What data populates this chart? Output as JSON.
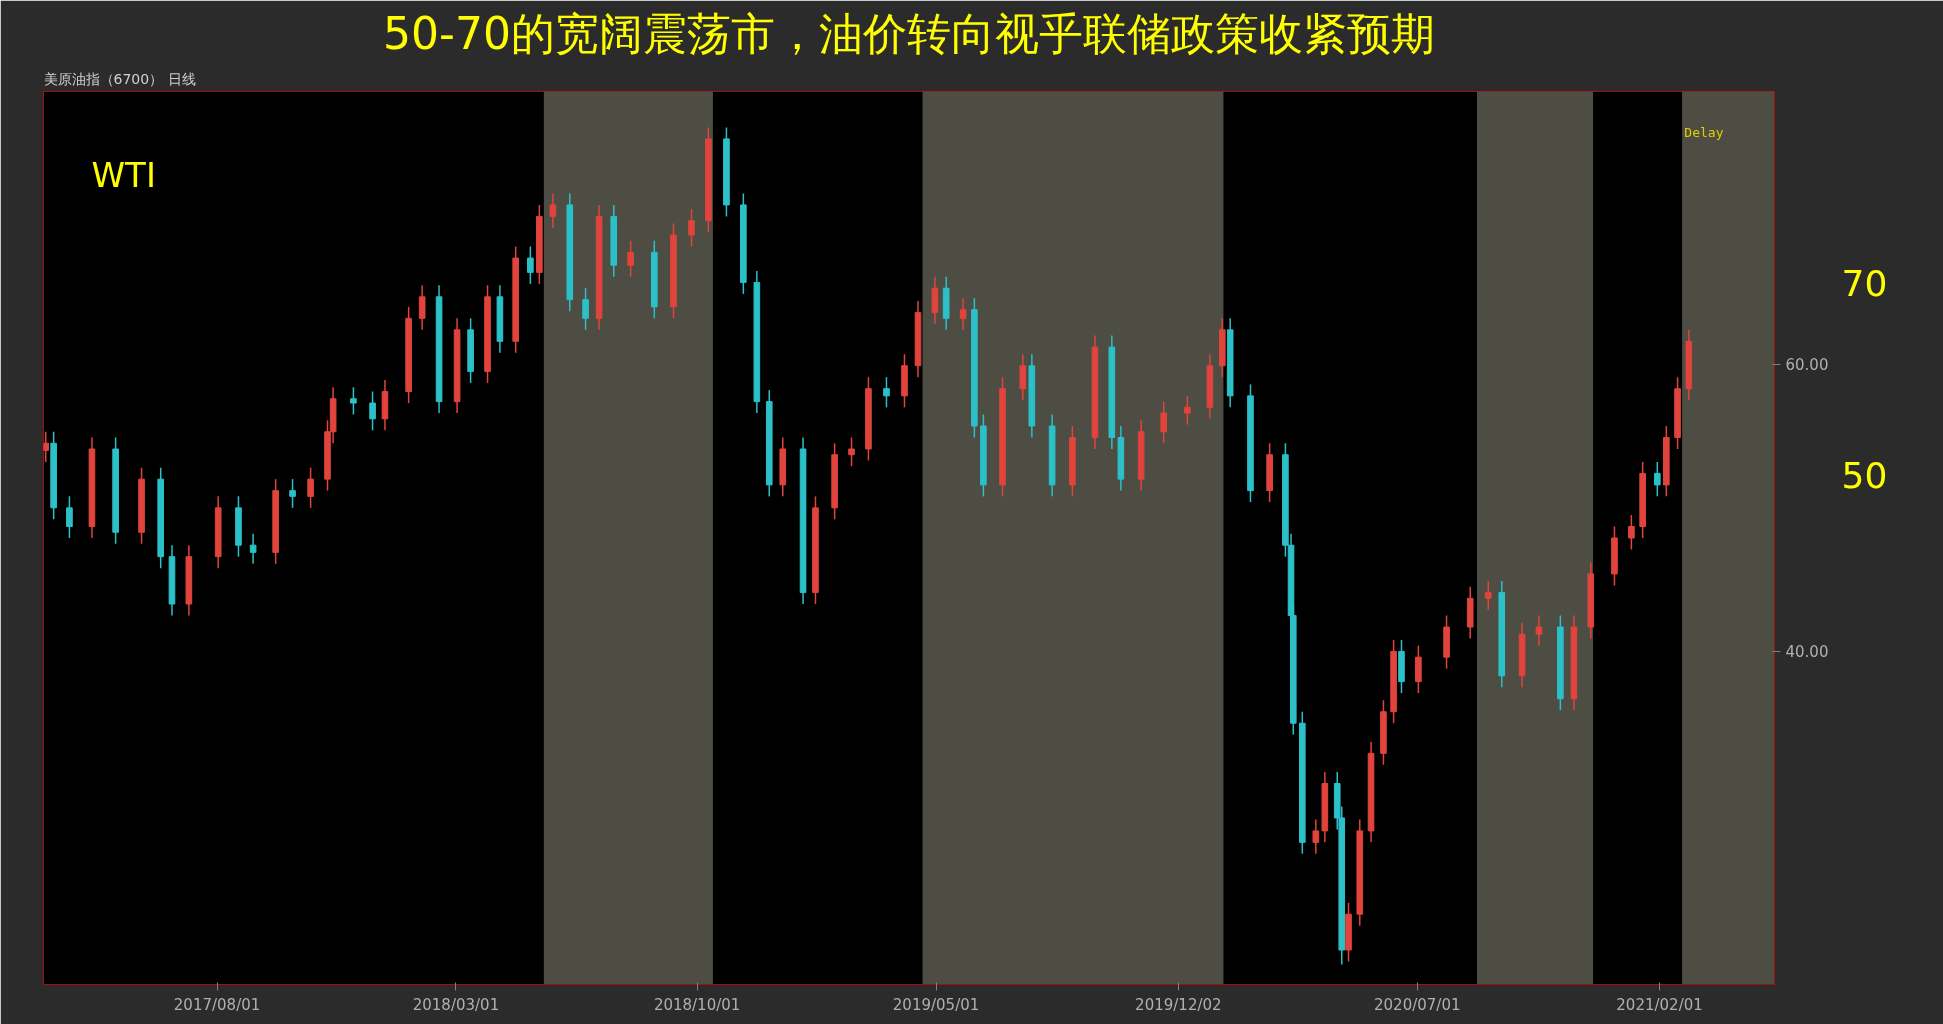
{
  "chart_data": {
    "type": "candlestick",
    "title": "50-70的宽阔震荡市，油价转向视乎联储政策收紧预期",
    "subtitle": "美原油指（6700） 日线",
    "x": [
      "2017-03-02",
      "2017-03-09",
      "2017-03-23",
      "2017-04-12",
      "2017-05-03",
      "2017-05-26",
      "2017-06-12",
      "2017-06-22",
      "2017-07-07",
      "2017-08-02",
      "2017-08-20",
      "2017-09-02",
      "2017-09-22",
      "2017-10-07",
      "2017-10-23",
      "2017-11-07",
      "2017-11-12",
      "2017-11-30",
      "2017-12-17",
      "2017-12-28",
      "2018-01-18",
      "2018-01-30",
      "2018-02-14",
      "2018-03-02",
      "2018-03-14",
      "2018-03-29",
      "2018-04-09",
      "2018-04-23",
      "2018-05-06",
      "2018-05-14",
      "2018-05-26",
      "2018-06-10",
      "2018-06-24",
      "2018-07-06",
      "2018-07-19",
      "2018-08-03",
      "2018-08-24",
      "2018-09-10",
      "2018-09-26",
      "2018-10-11",
      "2018-10-27",
      "2018-11-11",
      "2018-11-23",
      "2018-12-04",
      "2018-12-16",
      "2019-01-03",
      "2019-01-14",
      "2019-01-31",
      "2019-02-15",
      "2019-03-02",
      "2019-03-18",
      "2019-04-03",
      "2019-04-15",
      "2019-04-30",
      "2019-05-10",
      "2019-05-25",
      "2019-06-04",
      "2019-06-12",
      "2019-06-29",
      "2019-07-17",
      "2019-07-25",
      "2019-08-12",
      "2019-08-30",
      "2019-09-19",
      "2019-10-04",
      "2019-10-12",
      "2019-10-30",
      "2019-11-19",
      "2019-12-10",
      "2019-12-30",
      "2020-01-10",
      "2020-01-17",
      "2020-02-04",
      "2020-02-21",
      "2020-03-06",
      "2020-03-11",
      "2020-03-13",
      "2020-03-21",
      "2020-04-02",
      "2020-04-10",
      "2020-04-21",
      "2020-04-25",
      "2020-05-01",
      "2020-05-11",
      "2020-05-21",
      "2020-06-01",
      "2020-06-10",
      "2020-06-17",
      "2020-07-02",
      "2020-07-27",
      "2020-08-17",
      "2020-09-02",
      "2020-09-14",
      "2020-10-02",
      "2020-10-17",
      "2020-11-05",
      "2020-11-17",
      "2020-12-02",
      "2020-12-23",
      "2021-01-07",
      "2021-01-17",
      "2021-01-30",
      "2021-02-07",
      "2021-02-17",
      "2021-02-27"
    ],
    "ohlc": [
      [
        54.0,
        55.3,
        53.2,
        54.5
      ],
      [
        54.5,
        55.3,
        49.2,
        50.0
      ],
      [
        50.0,
        50.8,
        47.9,
        48.7
      ],
      [
        48.7,
        54.9,
        47.9,
        54.1
      ],
      [
        54.1,
        54.9,
        47.5,
        48.3
      ],
      [
        48.3,
        52.8,
        47.5,
        52.0
      ],
      [
        52.0,
        52.8,
        45.8,
        46.6
      ],
      [
        46.6,
        47.4,
        42.5,
        43.3
      ],
      [
        43.3,
        47.4,
        42.5,
        46.6
      ],
      [
        46.6,
        50.8,
        45.8,
        50.0
      ],
      [
        50.0,
        50.8,
        46.6,
        47.4
      ],
      [
        47.4,
        48.2,
        46.1,
        46.9
      ],
      [
        46.9,
        52.0,
        46.1,
        51.2
      ],
      [
        51.2,
        52.0,
        50.0,
        50.8
      ],
      [
        50.8,
        52.8,
        50.0,
        52.0
      ],
      [
        52.0,
        56.1,
        51.2,
        55.3
      ],
      [
        55.3,
        58.4,
        54.5,
        57.6
      ],
      [
        57.6,
        58.4,
        56.5,
        57.3
      ],
      [
        57.3,
        58.1,
        55.4,
        56.2
      ],
      [
        56.2,
        58.9,
        55.4,
        58.1
      ],
      [
        58.1,
        64.0,
        57.3,
        63.2
      ],
      [
        63.2,
        65.5,
        62.4,
        64.7
      ],
      [
        64.7,
        65.5,
        56.6,
        57.4
      ],
      [
        57.4,
        63.2,
        56.6,
        62.4
      ],
      [
        62.4,
        63.2,
        58.7,
        59.5
      ],
      [
        59.5,
        65.5,
        58.7,
        64.7
      ],
      [
        64.7,
        65.5,
        60.8,
        61.6
      ],
      [
        61.6,
        68.2,
        60.8,
        67.4
      ],
      [
        67.4,
        68.2,
        65.6,
        66.4
      ],
      [
        66.4,
        71.1,
        65.6,
        70.3
      ],
      [
        70.3,
        71.9,
        69.5,
        71.1
      ],
      [
        71.1,
        71.9,
        63.7,
        64.5
      ],
      [
        64.5,
        65.3,
        62.4,
        63.2
      ],
      [
        63.2,
        71.1,
        62.4,
        70.3
      ],
      [
        70.3,
        71.1,
        66.1,
        66.9
      ],
      [
        66.9,
        68.6,
        66.1,
        67.8
      ],
      [
        67.8,
        68.6,
        63.2,
        64.0
      ],
      [
        64.0,
        69.8,
        63.2,
        69.0
      ],
      [
        69.0,
        70.8,
        68.2,
        70.0
      ],
      [
        70.0,
        76.5,
        69.2,
        75.7
      ],
      [
        75.7,
        76.5,
        70.3,
        71.1
      ],
      [
        71.1,
        71.9,
        64.9,
        65.7
      ],
      [
        65.7,
        66.5,
        56.6,
        57.4
      ],
      [
        57.4,
        58.2,
        50.8,
        51.6
      ],
      [
        51.6,
        54.9,
        50.8,
        54.1
      ],
      [
        54.1,
        54.9,
        43.3,
        44.1
      ],
      [
        44.1,
        50.8,
        43.3,
        50.0
      ],
      [
        50.0,
        54.5,
        49.2,
        53.7
      ],
      [
        53.7,
        54.9,
        52.9,
        54.1
      ],
      [
        54.1,
        59.1,
        53.3,
        58.3
      ],
      [
        58.3,
        59.1,
        57.0,
        57.8
      ],
      [
        57.8,
        60.7,
        57.0,
        59.9
      ],
      [
        59.9,
        64.4,
        59.1,
        63.6
      ],
      [
        63.6,
        66.1,
        62.8,
        65.3
      ],
      [
        65.3,
        66.1,
        62.4,
        63.2
      ],
      [
        63.2,
        64.6,
        62.4,
        63.8
      ],
      [
        63.8,
        64.6,
        54.9,
        55.7
      ],
      [
        55.7,
        56.5,
        50.8,
        51.6
      ],
      [
        51.6,
        59.1,
        50.8,
        58.3
      ],
      [
        58.3,
        60.7,
        57.5,
        59.9
      ],
      [
        59.9,
        60.7,
        54.9,
        55.7
      ],
      [
        55.7,
        56.5,
        50.8,
        51.6
      ],
      [
        51.6,
        55.7,
        50.8,
        54.9
      ],
      [
        54.9,
        62.0,
        54.1,
        61.2
      ],
      [
        61.2,
        62.0,
        54.1,
        54.9
      ],
      [
        54.9,
        55.7,
        51.2,
        52.0
      ],
      [
        52.0,
        56.1,
        51.2,
        55.3
      ],
      [
        55.3,
        57.4,
        54.5,
        56.6
      ],
      [
        56.6,
        57.8,
        55.8,
        57.0
      ],
      [
        57.0,
        60.7,
        56.2,
        59.9
      ],
      [
        59.9,
        63.2,
        59.1,
        62.4
      ],
      [
        62.4,
        63.2,
        57.0,
        57.8
      ],
      [
        57.8,
        58.6,
        50.4,
        51.2
      ],
      [
        51.2,
        54.5,
        50.4,
        53.7
      ],
      [
        53.7,
        54.5,
        46.6,
        47.4
      ],
      [
        47.4,
        48.2,
        41.7,
        42.5
      ],
      [
        42.5,
        43.3,
        34.2,
        35.0
      ],
      [
        35.0,
        35.8,
        25.9,
        26.7
      ],
      [
        26.7,
        28.3,
        25.9,
        27.5
      ],
      [
        27.5,
        31.6,
        26.7,
        30.8
      ],
      [
        30.8,
        31.6,
        27.6,
        28.4
      ],
      [
        28.4,
        29.2,
        18.2,
        19.2
      ],
      [
        19.2,
        22.5,
        18.4,
        21.7
      ],
      [
        21.7,
        28.3,
        20.9,
        27.5
      ],
      [
        27.5,
        33.7,
        26.7,
        32.9
      ],
      [
        32.9,
        36.6,
        32.1,
        35.8
      ],
      [
        35.8,
        40.8,
        35.0,
        40.0
      ],
      [
        40.0,
        40.8,
        37.1,
        37.9
      ],
      [
        37.9,
        40.4,
        37.1,
        39.6
      ],
      [
        39.6,
        42.5,
        38.8,
        41.7
      ],
      [
        41.7,
        44.5,
        40.9,
        43.7
      ],
      [
        43.7,
        44.9,
        42.9,
        44.1
      ],
      [
        44.1,
        44.9,
        37.5,
        38.3
      ],
      [
        38.3,
        42.0,
        37.5,
        41.2
      ],
      [
        41.2,
        42.5,
        40.4,
        41.7
      ],
      [
        41.7,
        42.5,
        35.9,
        36.7
      ],
      [
        36.7,
        42.5,
        35.9,
        41.7
      ],
      [
        41.7,
        46.2,
        40.9,
        45.4
      ],
      [
        45.4,
        48.7,
        44.6,
        47.9
      ],
      [
        47.9,
        49.5,
        47.1,
        48.7
      ],
      [
        48.7,
        53.2,
        47.9,
        52.4
      ],
      [
        52.4,
        53.2,
        50.8,
        51.6
      ],
      [
        51.6,
        55.7,
        50.8,
        54.9
      ],
      [
        54.9,
        59.1,
        54.1,
        58.3
      ],
      [
        58.3,
        62.4,
        57.5,
        61.6
      ]
    ],
    "colors": [
      "#e0443c",
      "#2cc0c8",
      "#2cc0c8",
      "#e0443c",
      "#2cc0c8",
      "#e0443c",
      "#2cc0c8",
      "#2cc0c8",
      "#e0443c",
      "#e0443c",
      "#2cc0c8",
      "#2cc0c8",
      "#e0443c",
      "#2cc0c8",
      "#e0443c",
      "#e0443c",
      "#e0443c",
      "#2cc0c8",
      "#2cc0c8",
      "#e0443c",
      "#e0443c",
      "#e0443c",
      "#2cc0c8",
      "#e0443c",
      "#2cc0c8",
      "#e0443c",
      "#2cc0c8",
      "#e0443c",
      "#2cc0c8",
      "#e0443c",
      "#e0443c",
      "#2cc0c8",
      "#2cc0c8",
      "#e0443c",
      "#2cc0c8",
      "#e0443c",
      "#2cc0c8",
      "#e0443c",
      "#e0443c",
      "#e0443c",
      "#2cc0c8",
      "#2cc0c8",
      "#2cc0c8",
      "#2cc0c8",
      "#e0443c",
      "#2cc0c8",
      "#e0443c",
      "#e0443c",
      "#e0443c",
      "#e0443c",
      "#2cc0c8",
      "#e0443c",
      "#e0443c",
      "#e0443c",
      "#2cc0c8",
      "#e0443c",
      "#2cc0c8",
      "#2cc0c8",
      "#e0443c",
      "#e0443c",
      "#2cc0c8",
      "#2cc0c8",
      "#e0443c",
      "#e0443c",
      "#2cc0c8",
      "#2cc0c8",
      "#e0443c",
      "#e0443c",
      "#e0443c",
      "#e0443c",
      "#e0443c",
      "#2cc0c8",
      "#2cc0c8",
      "#e0443c",
      "#2cc0c8",
      "#2cc0c8",
      "#2cc0c8",
      "#2cc0c8",
      "#e0443c",
      "#e0443c",
      "#2cc0c8",
      "#2cc0c8",
      "#e0443c",
      "#e0443c",
      "#e0443c",
      "#e0443c",
      "#e0443c",
      "#2cc0c8",
      "#e0443c",
      "#e0443c",
      "#e0443c",
      "#e0443c",
      "#2cc0c8",
      "#e0443c",
      "#e0443c",
      "#2cc0c8",
      "#e0443c",
      "#e0443c",
      "#e0443c",
      "#e0443c",
      "#e0443c",
      "#2cc0c8",
      "#e0443c",
      "#e0443c",
      "#e0443c"
    ],
    "xlim": [
      "2017-02-28",
      "2021-05-14"
    ],
    "xticks": [
      {
        "value": "2017-08-01",
        "label": "2017/08/01"
      },
      {
        "value": "2018-03-01",
        "label": "2018/03/01"
      },
      {
        "value": "2018-10-01",
        "label": "2018/10/01"
      },
      {
        "value": "2019-05-01",
        "label": "2019/05/01"
      },
      {
        "value": "2019-12-02",
        "label": "2019/12/02"
      },
      {
        "value": "2020-07-01",
        "label": "2020/07/01"
      },
      {
        "value": "2021-02-01",
        "label": "2021/02/01"
      }
    ],
    "ylim": [
      16.8,
      79.0
    ],
    "yticks": [
      {
        "value": 40,
        "label": "40.00"
      },
      {
        "value": 60,
        "label": "60.00"
      }
    ],
    "bands": [
      {
        "axis": "x",
        "from": "2018-05-18",
        "to": "2018-10-15",
        "color": "#8c8c7c"
      },
      {
        "axis": "x",
        "from": "2019-04-19",
        "to": "2020-01-11",
        "color": "#8c8c7c"
      },
      {
        "axis": "x",
        "from": "2020-08-23",
        "to": "2020-12-04",
        "color": "#8c8c7c"
      },
      {
        "axis": "x",
        "from": "2021-02-21",
        "to": "2021-05-14",
        "color": "#8c8c7c"
      }
    ],
    "annotations": [
      "WTI",
      "Delay",
      "70",
      "50"
    ],
    "grid": false
  }
}
